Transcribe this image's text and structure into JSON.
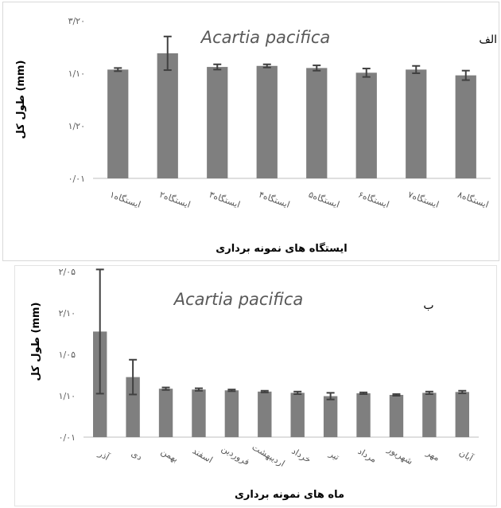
{
  "chart_data": [
    {
      "type": "bar",
      "panel_label": "الف",
      "title": "Acartia pacifica",
      "ylabel": "طول کل (mm)",
      "xlabel": "ایستگاه های نمونه برداری",
      "yticks": [
        "۰/۰۱",
        "۱/۲۰",
        "۱/۱۰",
        "۳/۲۰"
      ],
      "ylim": [
        0,
        3
      ],
      "categories": [
        "ایستگاه۱",
        "ایستگاه۲",
        "ایستگاه۳",
        "ایستگاه۴",
        "ایستگاه۵",
        "ایستگاه۶",
        "ایستگاه۷",
        "ایستگاه۸"
      ],
      "values": [
        2.07,
        2.38,
        2.12,
        2.14,
        2.1,
        2.01,
        2.07,
        1.96
      ],
      "errors": [
        0.03,
        0.32,
        0.05,
        0.03,
        0.05,
        0.08,
        0.07,
        0.09
      ],
      "colors": {
        "bar": "#7f7f7f",
        "error": "#404040"
      }
    },
    {
      "type": "bar",
      "panel_label": "ب",
      "title": "Acartia pacifica",
      "ylabel": "طول کل (mm)",
      "xlabel": "ماه های نمونه برداری",
      "yticks": [
        "۰/۰۱",
        "۱/۱۰",
        "۱/۰۵",
        "۲/۱۰",
        "۲/۰۵"
      ],
      "ylim": [
        0,
        4
      ],
      "categories": [
        "آذر",
        "دی",
        "بهمن",
        "اسفند",
        "فروردین",
        "اردیبهشت",
        "خرداد",
        "تیر",
        "مرداد",
        "شهریور",
        "مهر",
        "آبان"
      ],
      "values": [
        2.55,
        1.45,
        1.17,
        1.15,
        1.13,
        1.1,
        1.07,
        0.99,
        1.06,
        1.02,
        1.07,
        1.09
      ],
      "errors": [
        1.5,
        0.42,
        0.03,
        0.03,
        0.02,
        0.02,
        0.03,
        0.08,
        0.02,
        0.02,
        0.03,
        0.03
      ],
      "colors": {
        "bar": "#7f7f7f",
        "error": "#404040"
      }
    }
  ]
}
